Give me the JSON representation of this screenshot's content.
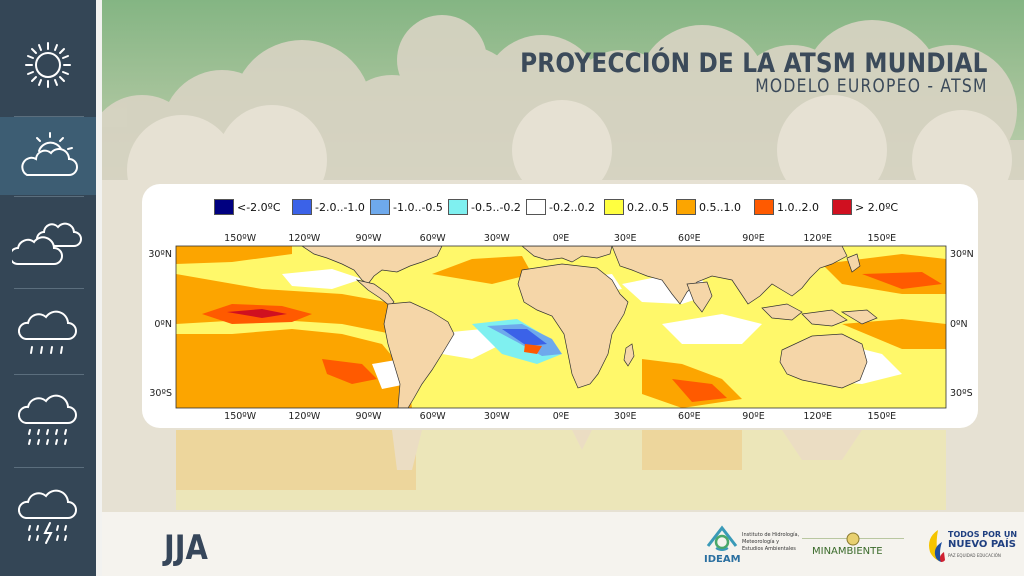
{
  "header": {
    "title": "PROYECCIÓN DE LA ATSM MUNDIAL",
    "subtitle": "MODELO EUROPEO - ATSM"
  },
  "sidebar": {
    "items": [
      {
        "icon": "sun-icon"
      },
      {
        "icon": "partly-cloudy-icon",
        "active": true
      },
      {
        "icon": "cloudy-icon"
      },
      {
        "icon": "light-rain-icon"
      },
      {
        "icon": "heavy-rain-icon"
      },
      {
        "icon": "thunderstorm-icon"
      }
    ]
  },
  "legend": [
    {
      "label": "<-2.0ºC",
      "color": "#000080"
    },
    {
      "label": "-2.0..-1.0",
      "color": "#3b62e8"
    },
    {
      "label": "-1.0..-0.5",
      "color": "#6ea9ec"
    },
    {
      "label": "-0.5..-0.2",
      "color": "#7ff0f0"
    },
    {
      "label": "-0.2..0.2",
      "color": "#ffffff"
    },
    {
      "label": "0.2..0.5",
      "color": "#ffff40"
    },
    {
      "label": "0.5..1.0",
      "color": "#fca500"
    },
    {
      "label": "1.0..2.0",
      "color": "#ff5a00"
    },
    {
      "label": "> 2.0ºC",
      "color": "#d01020"
    }
  ],
  "map": {
    "lon_labels": [
      "150ºW",
      "120ºW",
      "90ºW",
      "60ºW",
      "30ºW",
      "0ºE",
      "30ºE",
      "60ºE",
      "90ºE",
      "120ºE",
      "150ºE"
    ],
    "lat_labels": [
      "30ºN",
      "0ºN",
      "30ºS"
    ],
    "land_color": "#f5d6a8",
    "ocean_color": "#fff86a"
  },
  "footer": {
    "season": "JJA",
    "ideam_name": "IDEAM",
    "ideam_desc": [
      "Instituto de Hidrología,",
      "Meteorología y",
      "Estudios Ambientales"
    ],
    "ministry": "MINAMBIENTE",
    "gov_line1": "TODOS POR UN",
    "gov_line2": "NUEVO PAÍS",
    "gov_line3": "PAZ  EQUIDAD  EDUCACIÓN"
  }
}
